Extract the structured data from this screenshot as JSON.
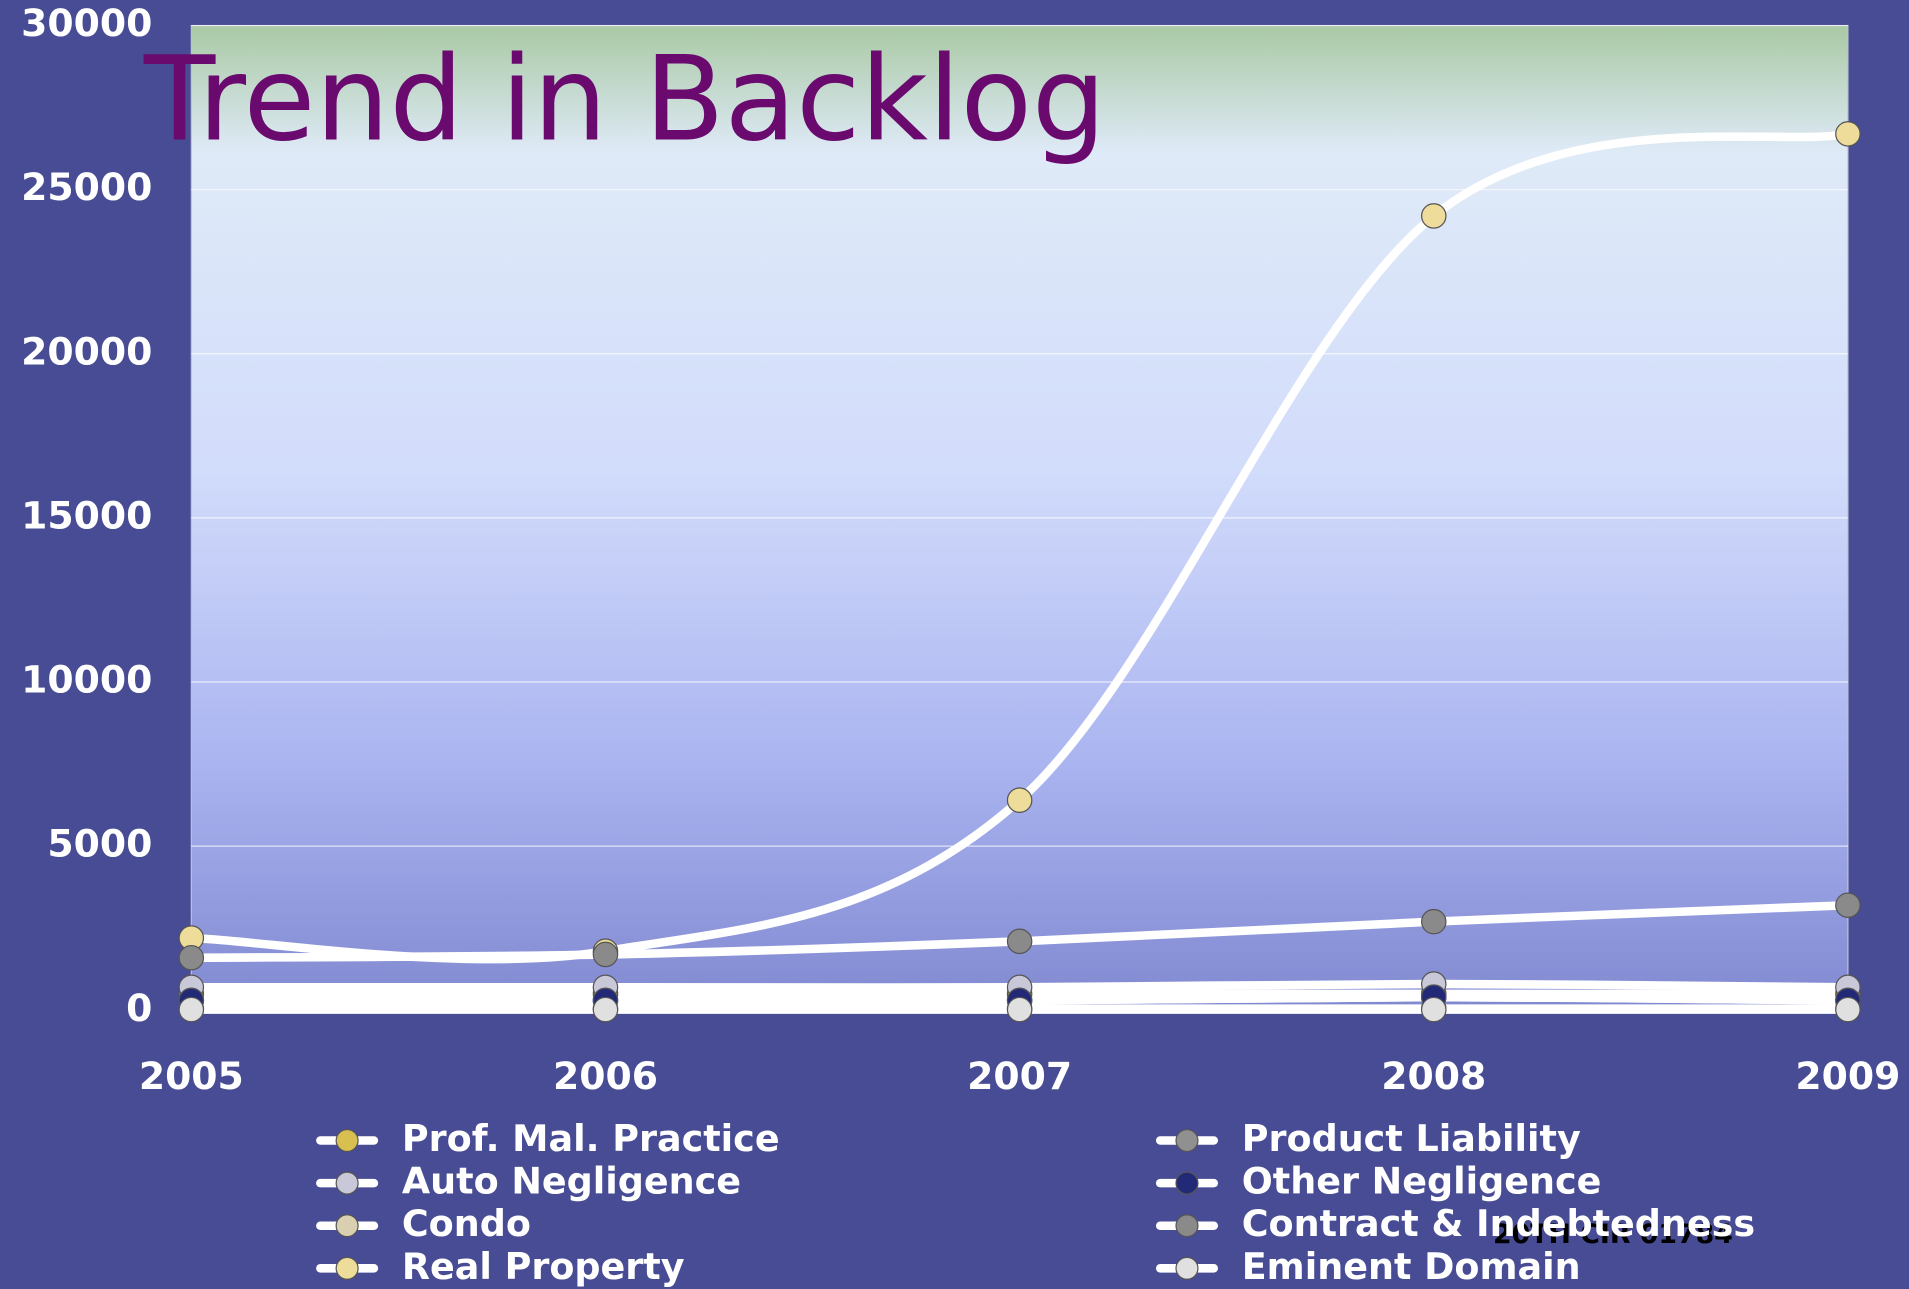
{
  "chart_data": {
    "type": "line",
    "title": "Trend in Backlog",
    "annotation": "20TH CIR 01784",
    "categories": [
      "2005",
      "2006",
      "2007",
      "2008",
      "2009"
    ],
    "ylim": [
      0,
      30000
    ],
    "yticks": [
      0,
      5000,
      10000,
      15000,
      20000,
      25000,
      30000
    ],
    "grid": true,
    "line_color": "#ffffff",
    "series": [
      {
        "name": "Prof. Mal. Practice",
        "color": "#d8c050",
        "values": [
          500,
          500,
          500,
          500,
          500
        ]
      },
      {
        "name": "Auto Negligence",
        "color": "#c8c8d8",
        "values": [
          700,
          700,
          700,
          800,
          700
        ]
      },
      {
        "name": "Condo",
        "color": "#d8d0b0",
        "values": [
          50,
          50,
          50,
          50,
          50
        ]
      },
      {
        "name": "Real Property",
        "color": "#eedc9a",
        "values": [
          2200,
          1800,
          6400,
          24200,
          26700
        ]
      },
      {
        "name": "Product Liability",
        "color": "#909090",
        "values": [
          300,
          300,
          300,
          400,
          300
        ]
      },
      {
        "name": "Other Negligence",
        "color": "#222a78",
        "values": [
          300,
          300,
          300,
          400,
          300
        ]
      },
      {
        "name": "Contract & Indebtedness",
        "color": "#8a8a8a",
        "values": [
          1600,
          1700,
          2100,
          2700,
          3200
        ]
      },
      {
        "name": "Eminent Domain",
        "color": "#e0e0e0",
        "values": [
          20,
          20,
          20,
          20,
          20
        ]
      }
    ]
  }
}
